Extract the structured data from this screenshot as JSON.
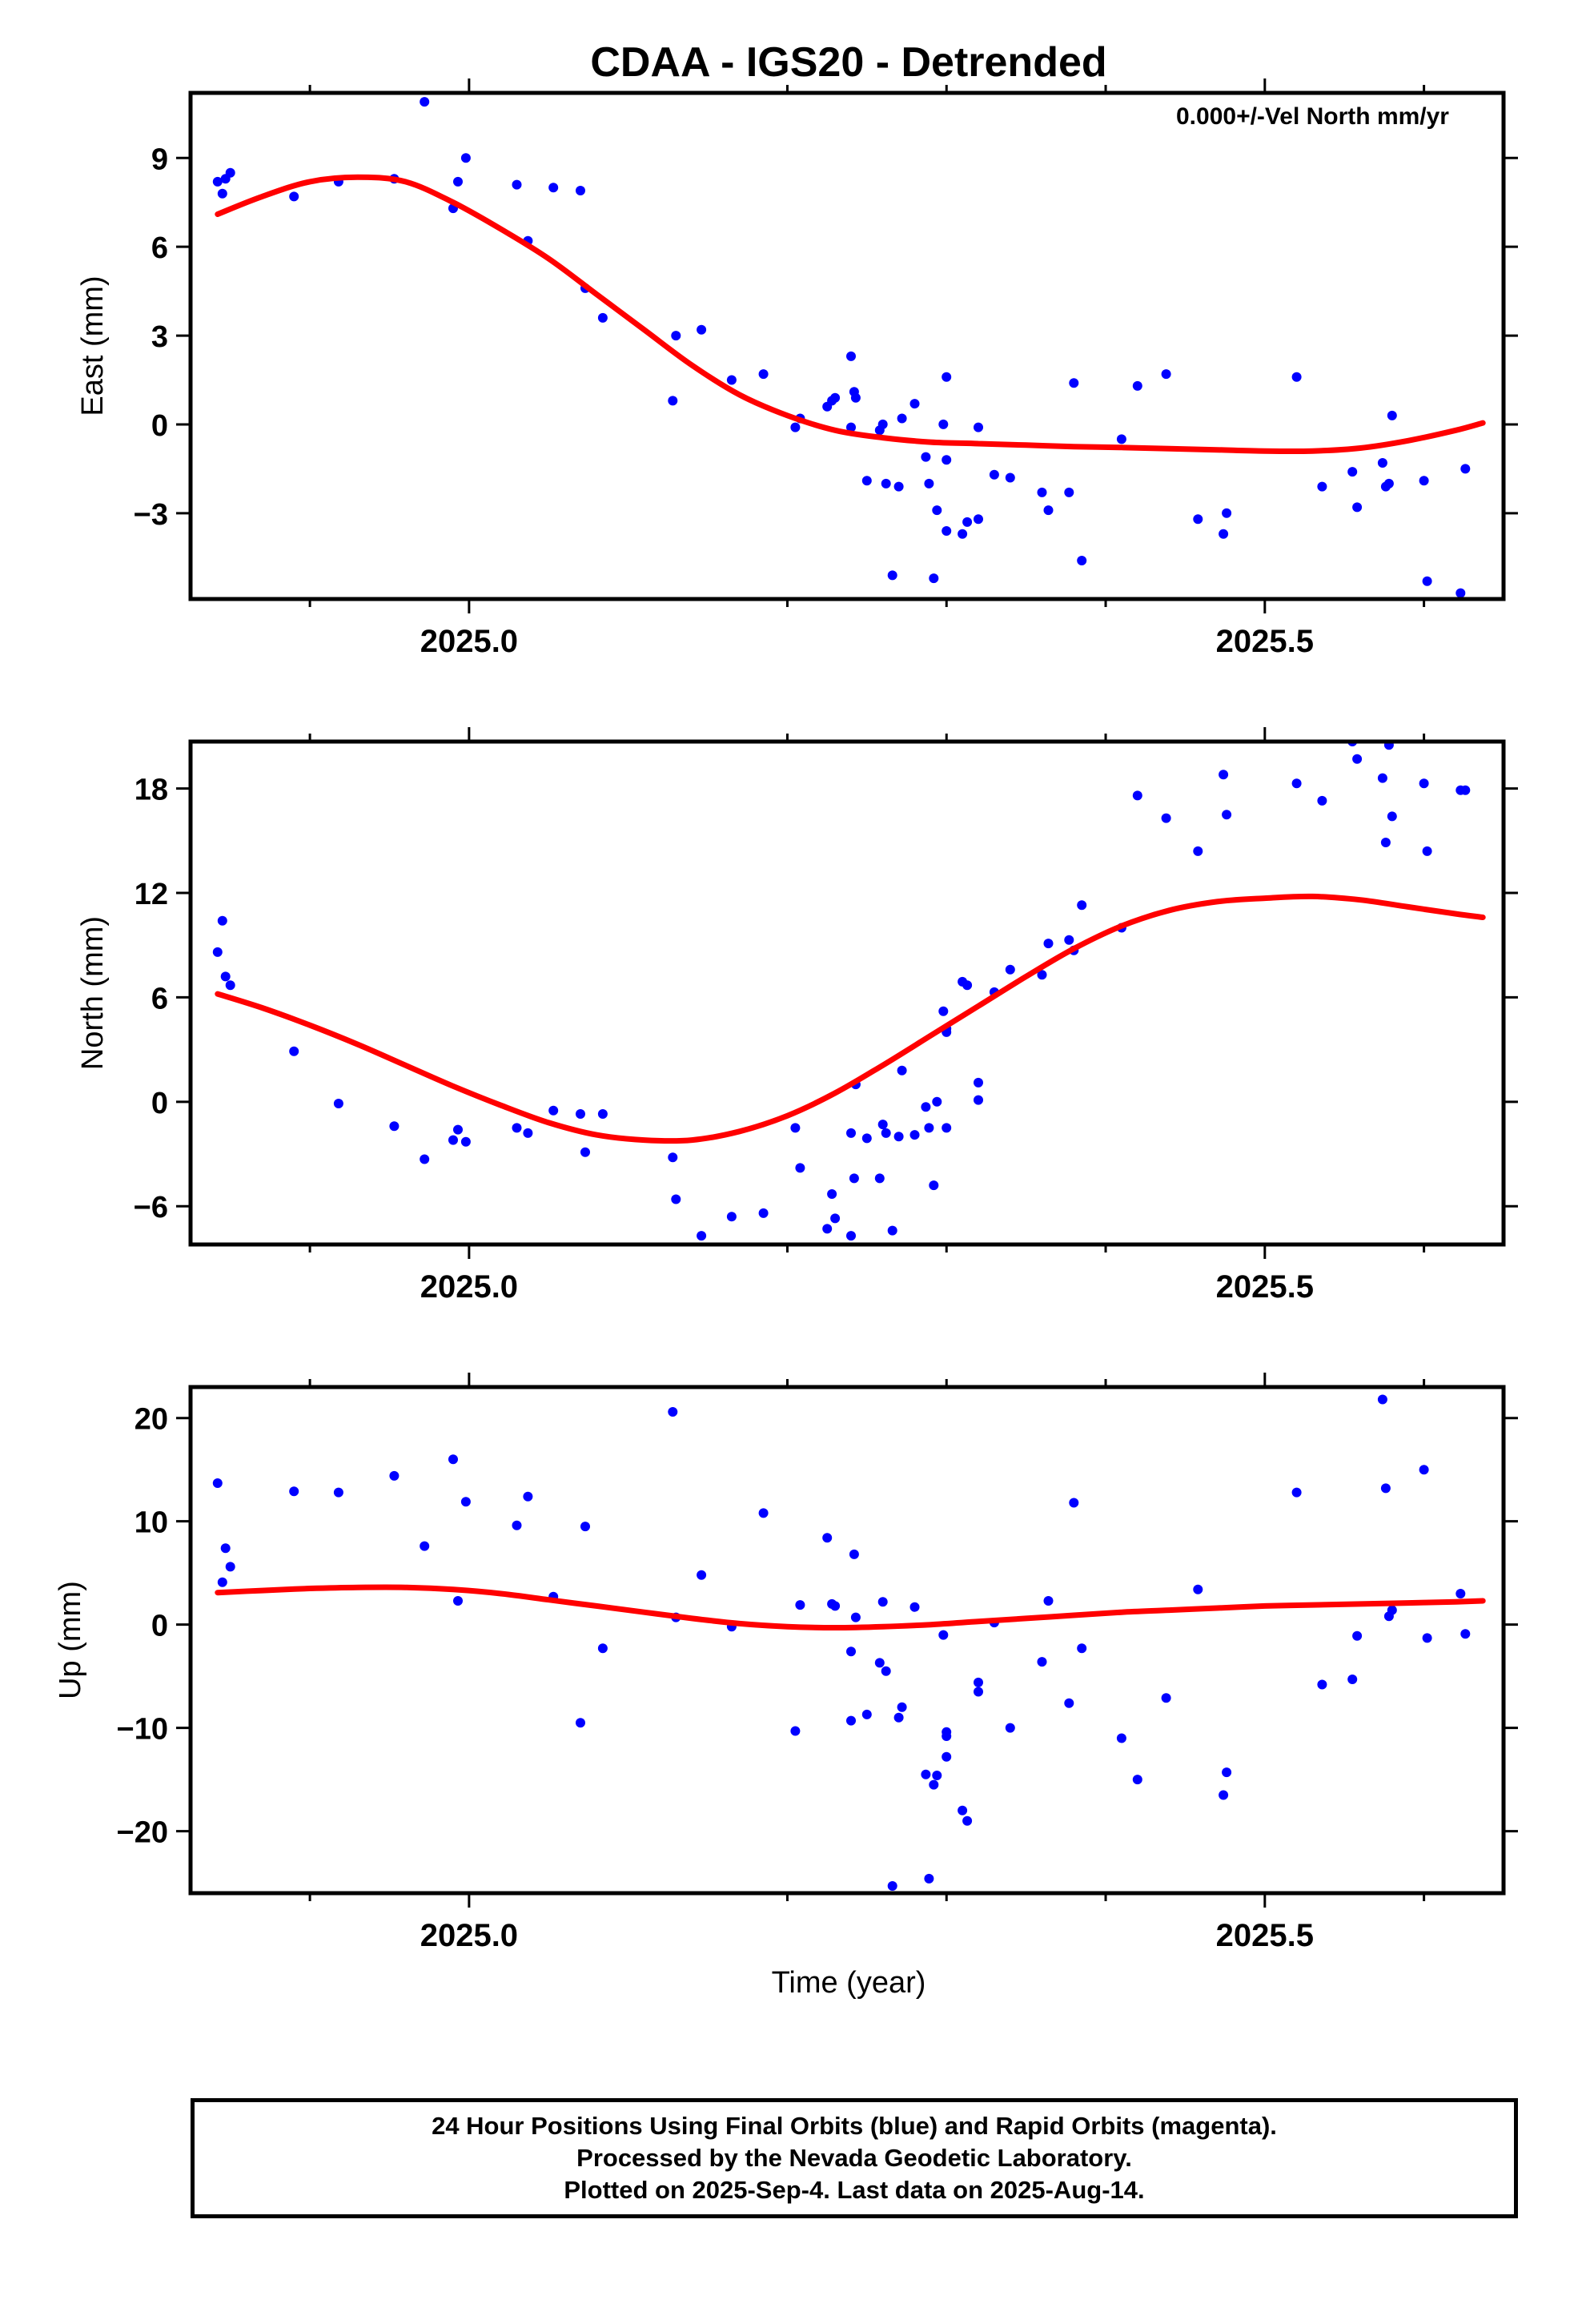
{
  "title": "CDAA - IGS20 - Detrended",
  "annotation": "0.000+/-Vel North mm/yr",
  "xlabel": "Time (year)",
  "footer": {
    "line1": "24 Hour Positions Using Final Orbits (blue) and Rapid Orbits (magenta).",
    "line2": "Processed by the Nevada Geodetic Laboratory.",
    "line3": "Plotted on 2025-Sep-4. Last data on 2025-Aug-14."
  },
  "colors": {
    "points": "#0000ff",
    "fit": "#ff0000",
    "frame": "#000000"
  },
  "chart_data": [
    {
      "type": "scatter",
      "ylabel": "East (mm)",
      "xlim": [
        2024.825,
        2025.65
      ],
      "ylim": [
        -5.9,
        11.2
      ],
      "xticks": [
        2025.0,
        2025.5
      ],
      "xtick_labels": [
        "2025.0",
        "2025.5"
      ],
      "yticks": [
        -3,
        0,
        3,
        6,
        9
      ],
      "ytick_labels": [
        "−3",
        "0",
        "3",
        "6",
        "9"
      ],
      "series": [
        {
          "kind": "points",
          "x": [
            2024.842,
            2024.845,
            2024.847,
            2024.85,
            2024.89,
            2024.918,
            2024.953,
            2024.972,
            2024.99,
            2024.993,
            2024.998,
            2025.03,
            2025.037,
            2025.053,
            2025.07,
            2025.073,
            2025.084,
            2025.128,
            2025.13,
            2025.146,
            2025.165,
            2025.185,
            2025.205,
            2025.208,
            2025.225,
            2025.228,
            2025.23,
            2025.24,
            2025.24,
            2025.242,
            2025.243,
            2025.25,
            2025.258,
            2025.26,
            2025.262,
            2025.266,
            2025.27,
            2025.272,
            2025.28,
            2025.287,
            2025.289,
            2025.292,
            2025.294,
            2025.298,
            2025.3,
            2025.31,
            2025.313,
            2025.3,
            2025.3,
            2025.32,
            2025.32,
            2025.33,
            2025.34,
            2025.36,
            2025.364,
            2025.377,
            2025.38,
            2025.385,
            2025.41,
            2025.42,
            2025.438,
            2025.458,
            2025.474,
            2025.476,
            2025.52,
            2025.536,
            2025.555,
            2025.558,
            2025.574,
            2025.576,
            2025.578,
            2025.58,
            2025.6,
            2025.602,
            2025.623,
            2025.626
          ],
          "y": [
            8.2,
            7.8,
            8.3,
            8.5,
            7.7,
            8.2,
            8.3,
            10.9,
            7.3,
            8.2,
            9.0,
            8.1,
            6.2,
            8.0,
            7.9,
            4.6,
            3.6,
            0.8,
            3.0,
            3.2,
            1.5,
            1.7,
            -0.1,
            0.2,
            0.6,
            0.8,
            0.9,
            2.3,
            -0.1,
            1.1,
            0.9,
            -1.9,
            -0.2,
            0.0,
            -2.0,
            -5.1,
            -2.1,
            0.2,
            0.7,
            -1.1,
            -2.0,
            -5.2,
            -2.9,
            0.0,
            -1.2,
            -3.7,
            -3.3,
            -3.6,
            1.6,
            -0.1,
            -3.2,
            -1.7,
            -1.8,
            -2.3,
            -2.9,
            -2.3,
            1.4,
            -4.6,
            -0.5,
            1.3,
            1.7,
            -3.2,
            -3.7,
            -3.0,
            1.6,
            -2.1,
            -1.6,
            -2.8,
            -1.3,
            -2.1,
            -2.0,
            0.3,
            -1.9,
            -5.3,
            -5.7,
            -1.5
          ]
        },
        {
          "kind": "fit",
          "x": [
            2024.842,
            2024.87,
            2024.9,
            2024.93,
            2024.96,
            2024.99,
            2025.02,
            2025.05,
            2025.08,
            2025.11,
            2025.14,
            2025.17,
            2025.2,
            2025.23,
            2025.26,
            2025.29,
            2025.32,
            2025.35,
            2025.38,
            2025.41,
            2025.44,
            2025.47,
            2025.5,
            2025.53,
            2025.56,
            2025.59,
            2025.62,
            2025.637
          ],
          "y": [
            7.1,
            7.7,
            8.2,
            8.35,
            8.2,
            7.5,
            6.6,
            5.6,
            4.4,
            3.2,
            2.0,
            1.0,
            0.3,
            -0.2,
            -0.45,
            -0.6,
            -0.65,
            -0.7,
            -0.75,
            -0.78,
            -0.82,
            -0.86,
            -0.9,
            -0.9,
            -0.8,
            -0.55,
            -0.2,
            0.05
          ]
        }
      ]
    },
    {
      "type": "scatter",
      "ylabel": "North (mm)",
      "xlim": [
        2024.825,
        2025.65
      ],
      "ylim": [
        -8.2,
        20.7
      ],
      "xticks": [
        2025.0,
        2025.5
      ],
      "xtick_labels": [
        "2025.0",
        "2025.5"
      ],
      "yticks": [
        -6,
        0,
        6,
        12,
        18
      ],
      "ytick_labels": [
        "−6",
        "0",
        "6",
        "12",
        "18"
      ],
      "series": [
        {
          "kind": "points",
          "x": [
            2024.842,
            2024.845,
            2024.847,
            2024.85,
            2024.89,
            2024.918,
            2024.953,
            2024.972,
            2024.99,
            2024.993,
            2024.998,
            2025.03,
            2025.037,
            2025.053,
            2025.07,
            2025.073,
            2025.084,
            2025.128,
            2025.13,
            2025.146,
            2025.165,
            2025.185,
            2025.205,
            2025.208,
            2025.225,
            2025.228,
            2025.23,
            2025.24,
            2025.24,
            2025.242,
            2025.243,
            2025.25,
            2025.258,
            2025.26,
            2025.262,
            2025.266,
            2025.27,
            2025.272,
            2025.28,
            2025.287,
            2025.289,
            2025.292,
            2025.294,
            2025.298,
            2025.3,
            2025.31,
            2025.313,
            2025.3,
            2025.3,
            2025.32,
            2025.32,
            2025.33,
            2025.34,
            2025.36,
            2025.364,
            2025.377,
            2025.38,
            2025.385,
            2025.41,
            2025.42,
            2025.438,
            2025.458,
            2025.474,
            2025.476,
            2025.52,
            2025.536,
            2025.555,
            2025.558,
            2025.574,
            2025.576,
            2025.578,
            2025.58,
            2025.6,
            2025.602,
            2025.623,
            2025.626
          ],
          "y": [
            8.6,
            10.4,
            7.2,
            6.7,
            2.9,
            -0.1,
            -1.4,
            -3.3,
            -2.2,
            -1.6,
            -2.3,
            -1.5,
            -1.8,
            -0.5,
            -0.7,
            -2.9,
            -0.7,
            -3.2,
            -5.6,
            -7.7,
            -6.6,
            -6.4,
            -1.5,
            -3.8,
            -7.3,
            -5.3,
            -6.7,
            -7.7,
            -1.8,
            -4.4,
            1.0,
            -2.1,
            -4.4,
            -1.3,
            -1.8,
            -7.4,
            -2.0,
            1.8,
            -1.9,
            -0.3,
            -1.5,
            -4.8,
            0.0,
            5.2,
            -1.5,
            6.9,
            6.7,
            4.2,
            4.0,
            0.1,
            1.1,
            6.3,
            7.6,
            7.3,
            9.1,
            9.3,
            8.7,
            11.3,
            10.0,
            17.6,
            16.3,
            14.4,
            18.8,
            16.5,
            18.3,
            17.3,
            20.7,
            19.7,
            18.6,
            14.9,
            20.5,
            16.4,
            18.3,
            14.4,
            17.9,
            17.9
          ]
        },
        {
          "kind": "fit",
          "x": [
            2024.842,
            2024.87,
            2024.9,
            2024.93,
            2024.96,
            2024.99,
            2025.02,
            2025.05,
            2025.08,
            2025.11,
            2025.14,
            2025.17,
            2025.2,
            2025.23,
            2025.26,
            2025.29,
            2025.32,
            2025.35,
            2025.38,
            2025.41,
            2025.44,
            2025.47,
            2025.5,
            2025.53,
            2025.56,
            2025.59,
            2025.62,
            2025.637
          ],
          "y": [
            6.2,
            5.4,
            4.4,
            3.3,
            2.1,
            0.9,
            -0.2,
            -1.2,
            -1.9,
            -2.2,
            -2.2,
            -1.7,
            -0.8,
            0.5,
            2.1,
            3.8,
            5.5,
            7.2,
            8.8,
            10.1,
            11.0,
            11.5,
            11.7,
            11.8,
            11.6,
            11.2,
            10.8,
            10.6
          ]
        }
      ]
    },
    {
      "type": "scatter",
      "ylabel": "Up (mm)",
      "xlim": [
        2024.825,
        2025.65
      ],
      "ylim": [
        -26,
        23
      ],
      "xticks": [
        2025.0,
        2025.5
      ],
      "xtick_labels": [
        "2025.0",
        "2025.5"
      ],
      "yticks": [
        -20,
        -10,
        0,
        10,
        20
      ],
      "ytick_labels": [
        "−20",
        "−10",
        "0",
        "10",
        "20"
      ],
      "series": [
        {
          "kind": "points",
          "x": [
            2024.842,
            2024.845,
            2024.847,
            2024.85,
            2024.89,
            2024.918,
            2024.953,
            2024.972,
            2024.99,
            2024.993,
            2024.998,
            2025.03,
            2025.037,
            2025.053,
            2025.07,
            2025.073,
            2025.084,
            2025.128,
            2025.13,
            2025.146,
            2025.165,
            2025.185,
            2025.205,
            2025.208,
            2025.225,
            2025.228,
            2025.23,
            2025.24,
            2025.24,
            2025.242,
            2025.243,
            2025.25,
            2025.258,
            2025.26,
            2025.262,
            2025.266,
            2025.27,
            2025.272,
            2025.28,
            2025.287,
            2025.289,
            2025.292,
            2025.294,
            2025.298,
            2025.3,
            2025.31,
            2025.313,
            2025.3,
            2025.3,
            2025.32,
            2025.32,
            2025.33,
            2025.34,
            2025.36,
            2025.364,
            2025.377,
            2025.38,
            2025.385,
            2025.41,
            2025.42,
            2025.438,
            2025.458,
            2025.474,
            2025.476,
            2025.52,
            2025.536,
            2025.555,
            2025.558,
            2025.574,
            2025.576,
            2025.578,
            2025.58,
            2025.6,
            2025.602,
            2025.623,
            2025.626
          ],
          "y": [
            13.7,
            4.1,
            7.4,
            5.6,
            12.9,
            12.8,
            14.4,
            7.6,
            16.0,
            2.3,
            11.9,
            9.6,
            12.4,
            2.7,
            -9.5,
            9.5,
            -2.3,
            20.6,
            0.7,
            4.8,
            -0.2,
            10.8,
            -10.3,
            1.9,
            8.4,
            2.0,
            1.8,
            -2.6,
            -9.3,
            6.8,
            0.7,
            -8.7,
            -3.7,
            2.2,
            -4.5,
            -25.3,
            -9.0,
            -8.0,
            1.7,
            -14.5,
            -24.6,
            -15.5,
            -14.6,
            -1.0,
            -10.8,
            -18.0,
            -19.0,
            -10.4,
            -12.8,
            -5.6,
            -6.5,
            0.2,
            -10.0,
            -3.6,
            2.3,
            -7.6,
            11.8,
            -2.3,
            -11.0,
            -15.0,
            -7.1,
            3.4,
            -16.5,
            -14.3,
            12.8,
            -5.8,
            -5.3,
            -1.1,
            21.8,
            13.2,
            0.8,
            1.4,
            15.0,
            -1.3,
            3.0,
            -0.9
          ]
        },
        {
          "kind": "fit",
          "x": [
            2024.842,
            2024.87,
            2024.9,
            2024.93,
            2024.96,
            2024.99,
            2025.02,
            2025.05,
            2025.08,
            2025.11,
            2025.14,
            2025.17,
            2025.2,
            2025.23,
            2025.26,
            2025.29,
            2025.32,
            2025.35,
            2025.38,
            2025.41,
            2025.44,
            2025.47,
            2025.5,
            2025.53,
            2025.56,
            2025.59,
            2025.62,
            2025.637
          ],
          "y": [
            3.1,
            3.3,
            3.5,
            3.6,
            3.6,
            3.4,
            3.0,
            2.4,
            1.8,
            1.2,
            0.6,
            0.1,
            -0.2,
            -0.3,
            -0.2,
            0.0,
            0.3,
            0.6,
            0.9,
            1.2,
            1.4,
            1.6,
            1.8,
            1.9,
            2.0,
            2.1,
            2.2,
            2.3
          ]
        }
      ]
    }
  ]
}
